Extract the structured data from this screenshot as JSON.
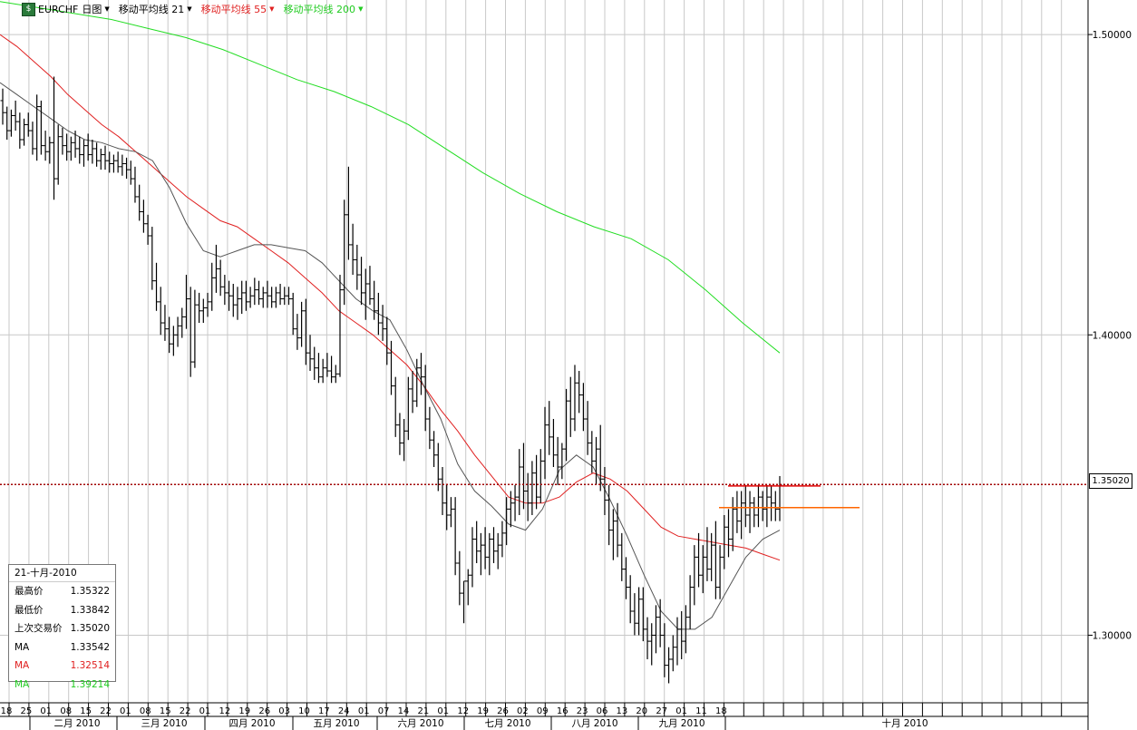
{
  "toolbar": {
    "symbol": "EURCHF",
    "period": "日图",
    "ma1_label": "移动平均线 21",
    "ma2_label": "移动平均线 55",
    "ma3_label": "移动平均线 200"
  },
  "colors": {
    "ma21": "#555555",
    "ma55": "#e02020",
    "ma200": "#22dd22",
    "price_line": "#a00000",
    "resistance": "#e00000",
    "support": "#ff6600"
  },
  "info_box": {
    "date": "21-十月-2010",
    "rows": [
      {
        "label": "最高价",
        "value": "1.35322"
      },
      {
        "label": "最低价",
        "value": "1.33842"
      },
      {
        "label": "上次交易价",
        "value": "1.35020"
      },
      {
        "label": "MA",
        "value": "1.33542"
      },
      {
        "label": "MA",
        "value": "1.32514"
      },
      {
        "label": "MA",
        "value": "1.39214"
      }
    ]
  },
  "last_price": "1.35020",
  "chart_data": {
    "type": "line",
    "title": "EURCHF 日图",
    "ylim": [
      1.2775,
      1.5115
    ],
    "y_ticks": [
      "1.50000",
      "1.40000",
      "1.30000"
    ],
    "grid": true,
    "x_day_ticks": [
      "18",
      "25",
      "01",
      "08",
      "15",
      "22",
      "01",
      "08",
      "15",
      "22",
      "01",
      "12",
      "19",
      "26",
      "03",
      "10",
      "17",
      "24",
      "01",
      "07",
      "14",
      "21",
      "01",
      "12",
      "19",
      "26",
      "02",
      "09",
      "16",
      "23",
      "06",
      "13",
      "20",
      "27",
      "01",
      "11",
      "18"
    ],
    "x_month_labels": [
      "二月 2010",
      "三月 2010",
      "四月 2010",
      "五月 2010",
      "六月 2010",
      "七月 2010",
      "八月 2010",
      "九月 2010",
      "十月 2010"
    ],
    "series": [
      {
        "name": "移动平均线 21",
        "values": [
          1.484,
          1.48,
          1.476,
          1.472,
          1.468,
          1.465,
          1.464,
          1.462,
          1.461,
          1.458,
          1.449,
          1.437,
          1.428,
          1.426,
          1.428,
          1.43,
          1.43,
          1.429,
          1.428,
          1.424,
          1.418,
          1.412,
          1.408,
          1.405,
          1.395,
          1.383,
          1.372,
          1.357,
          1.348,
          1.343,
          1.337,
          1.335,
          1.342,
          1.355,
          1.36,
          1.356,
          1.345,
          1.333,
          1.32,
          1.308,
          1.302,
          1.302,
          1.306,
          1.316,
          1.326,
          1.332,
          1.335
        ]
      },
      {
        "name": "移动平均线 55",
        "values": [
          1.5,
          1.496,
          1.491,
          1.486,
          1.48,
          1.475,
          1.47,
          1.466,
          1.461,
          1.456,
          1.451,
          1.446,
          1.442,
          1.438,
          1.436,
          1.432,
          1.428,
          1.424,
          1.419,
          1.414,
          1.408,
          1.404,
          1.4,
          1.395,
          1.39,
          1.383,
          1.375,
          1.368,
          1.36,
          1.353,
          1.346,
          1.344,
          1.344,
          1.346,
          1.351,
          1.354,
          1.352,
          1.348,
          1.342,
          1.336,
          1.333,
          1.332,
          1.331,
          1.33,
          1.329,
          1.327,
          1.325
        ]
      },
      {
        "name": "移动平均线 200",
        "values": [
          1.511,
          1.509,
          1.507,
          1.505,
          1.502,
          1.499,
          1.495,
          1.49,
          1.485,
          1.481,
          1.476,
          1.47,
          1.462,
          1.454,
          1.447,
          1.441,
          1.436,
          1.432,
          1.425,
          1.415,
          1.404,
          1.394
        ]
      }
    ],
    "ohlc_daily": [
      [
        1.478,
        1.482,
        1.47,
        1.474
      ],
      [
        1.474,
        1.476,
        1.465,
        1.468
      ],
      [
        1.468,
        1.475,
        1.466,
        1.473
      ],
      [
        1.473,
        1.478,
        1.468,
        1.471
      ],
      [
        1.471,
        1.474,
        1.462,
        1.465
      ],
      [
        1.465,
        1.472,
        1.463,
        1.47
      ],
      [
        1.47,
        1.474,
        1.466,
        1.468
      ],
      [
        1.468,
        1.471,
        1.46,
        1.462
      ],
      [
        1.462,
        1.48,
        1.458,
        1.476
      ],
      [
        1.476,
        1.478,
        1.46,
        1.463
      ],
      [
        1.463,
        1.468,
        1.458,
        1.461
      ],
      [
        1.461,
        1.466,
        1.457,
        1.464
      ],
      [
        1.464,
        1.486,
        1.445,
        1.452
      ],
      [
        1.452,
        1.47,
        1.45,
        1.466
      ],
      [
        1.466,
        1.469,
        1.46,
        1.463
      ],
      [
        1.463,
        1.467,
        1.458,
        1.461
      ],
      [
        1.461,
        1.466,
        1.458,
        1.464
      ],
      [
        1.464,
        1.468,
        1.459,
        1.462
      ],
      [
        1.462,
        1.466,
        1.457,
        1.46
      ],
      [
        1.46,
        1.465,
        1.456,
        1.463
      ],
      [
        1.463,
        1.467,
        1.458,
        1.46
      ],
      [
        1.46,
        1.465,
        1.457,
        1.462
      ],
      [
        1.462,
        1.464,
        1.456,
        1.458
      ],
      [
        1.458,
        1.462,
        1.455,
        1.46
      ],
      [
        1.46,
        1.463,
        1.455,
        1.458
      ],
      [
        1.458,
        1.461,
        1.454,
        1.457
      ],
      [
        1.457,
        1.46,
        1.454,
        1.458
      ],
      [
        1.458,
        1.461,
        1.454,
        1.456
      ],
      [
        1.456,
        1.46,
        1.453,
        1.457
      ],
      [
        1.457,
        1.459,
        1.452,
        1.455
      ],
      [
        1.455,
        1.458,
        1.45,
        1.452
      ],
      [
        1.452,
        1.456,
        1.444,
        1.446
      ],
      [
        1.446,
        1.45,
        1.438,
        1.441
      ],
      [
        1.441,
        1.445,
        1.434,
        1.437
      ],
      [
        1.437,
        1.44,
        1.43,
        1.433
      ],
      [
        1.433,
        1.436,
        1.415,
        1.418
      ],
      [
        1.418,
        1.424,
        1.408,
        1.411
      ],
      [
        1.411,
        1.416,
        1.4,
        1.404
      ],
      [
        1.404,
        1.41,
        1.398,
        1.402
      ],
      [
        1.402,
        1.406,
        1.394,
        1.397
      ],
      [
        1.397,
        1.403,
        1.393,
        1.4
      ],
      [
        1.4,
        1.406,
        1.396,
        1.403
      ],
      [
        1.403,
        1.409,
        1.399,
        1.406
      ],
      [
        1.406,
        1.42,
        1.402,
        1.412
      ],
      [
        1.412,
        1.416,
        1.386,
        1.391
      ],
      [
        1.391,
        1.415,
        1.389,
        1.41
      ],
      [
        1.41,
        1.414,
        1.404,
        1.408
      ],
      [
        1.408,
        1.412,
        1.404,
        1.409
      ],
      [
        1.409,
        1.414,
        1.406,
        1.411
      ],
      [
        1.411,
        1.424,
        1.408,
        1.419
      ],
      [
        1.419,
        1.43,
        1.414,
        1.422
      ],
      [
        1.422,
        1.425,
        1.413,
        1.416
      ],
      [
        1.416,
        1.42,
        1.41,
        1.414
      ],
      [
        1.414,
        1.418,
        1.408,
        1.413
      ],
      [
        1.413,
        1.417,
        1.406,
        1.41
      ],
      [
        1.41,
        1.416,
        1.405,
        1.412
      ],
      [
        1.412,
        1.418,
        1.407,
        1.414
      ],
      [
        1.414,
        1.418,
        1.408,
        1.411
      ],
      [
        1.411,
        1.416,
        1.409,
        1.413
      ],
      [
        1.413,
        1.419,
        1.41,
        1.415
      ],
      [
        1.415,
        1.418,
        1.41,
        1.412
      ],
      [
        1.412,
        1.416,
        1.409,
        1.414
      ],
      [
        1.414,
        1.418,
        1.409,
        1.413
      ],
      [
        1.413,
        1.416,
        1.409,
        1.411
      ],
      [
        1.411,
        1.416,
        1.409,
        1.414
      ],
      [
        1.414,
        1.417,
        1.41,
        1.412
      ],
      [
        1.412,
        1.416,
        1.41,
        1.413
      ],
      [
        1.413,
        1.416,
        1.41,
        1.412
      ],
      [
        1.412,
        1.414,
        1.4,
        1.402
      ],
      [
        1.402,
        1.407,
        1.395,
        1.399
      ],
      [
        1.399,
        1.411,
        1.396,
        1.408
      ],
      [
        1.408,
        1.412,
        1.39,
        1.394
      ],
      [
        1.394,
        1.4,
        1.388,
        1.392
      ],
      [
        1.392,
        1.396,
        1.385,
        1.389
      ],
      [
        1.389,
        1.394,
        1.384,
        1.386
      ],
      [
        1.386,
        1.392,
        1.384,
        1.389
      ],
      [
        1.389,
        1.394,
        1.386,
        1.388
      ],
      [
        1.388,
        1.393,
        1.384,
        1.386
      ],
      [
        1.386,
        1.39,
        1.384,
        1.387
      ],
      [
        1.387,
        1.42,
        1.386,
        1.415
      ],
      [
        1.415,
        1.445,
        1.41,
        1.44
      ],
      [
        1.44,
        1.456,
        1.425,
        1.43
      ],
      [
        1.43,
        1.437,
        1.42,
        1.425
      ],
      [
        1.425,
        1.43,
        1.415,
        1.42
      ],
      [
        1.42,
        1.426,
        1.41,
        1.414
      ],
      [
        1.414,
        1.422,
        1.405,
        1.417
      ],
      [
        1.417,
        1.423,
        1.41,
        1.412
      ],
      [
        1.412,
        1.418,
        1.405,
        1.408
      ],
      [
        1.408,
        1.414,
        1.4,
        1.404
      ],
      [
        1.404,
        1.41,
        1.398,
        1.402
      ],
      [
        1.402,
        1.406,
        1.39,
        1.394
      ],
      [
        1.394,
        1.398,
        1.38,
        1.383
      ],
      [
        1.383,
        1.386,
        1.366,
        1.37
      ],
      [
        1.37,
        1.374,
        1.36,
        1.364
      ],
      [
        1.364,
        1.372,
        1.358,
        1.368
      ],
      [
        1.368,
        1.386,
        1.365,
        1.382
      ],
      [
        1.382,
        1.388,
        1.374,
        1.378
      ],
      [
        1.378,
        1.392,
        1.376,
        1.389
      ],
      [
        1.389,
        1.394,
        1.38,
        1.386
      ],
      [
        1.386,
        1.39,
        1.368,
        1.372
      ],
      [
        1.372,
        1.376,
        1.362,
        1.365
      ],
      [
        1.365,
        1.368,
        1.356,
        1.36
      ],
      [
        1.36,
        1.364,
        1.348,
        1.352
      ],
      [
        1.352,
        1.356,
        1.34,
        1.344
      ],
      [
        1.344,
        1.35,
        1.335,
        1.34
      ],
      [
        1.34,
        1.346,
        1.336,
        1.342
      ],
      [
        1.342,
        1.346,
        1.32,
        1.324
      ],
      [
        1.324,
        1.328,
        1.31,
        1.314
      ],
      [
        1.314,
        1.318,
        1.304,
        1.318
      ],
      [
        1.318,
        1.322,
        1.31,
        1.32
      ],
      [
        1.32,
        1.336,
        1.316,
        1.332
      ],
      [
        1.332,
        1.338,
        1.324,
        1.328
      ],
      [
        1.328,
        1.334,
        1.32,
        1.33
      ],
      [
        1.33,
        1.336,
        1.322,
        1.326
      ],
      [
        1.326,
        1.334,
        1.32,
        1.332
      ],
      [
        1.332,
        1.336,
        1.324,
        1.328
      ],
      [
        1.328,
        1.334,
        1.322,
        1.33
      ],
      [
        1.33,
        1.338,
        1.326,
        1.334
      ],
      [
        1.334,
        1.346,
        1.33,
        1.342
      ],
      [
        1.342,
        1.348,
        1.336,
        1.344
      ],
      [
        1.344,
        1.35,
        1.338,
        1.346
      ],
      [
        1.346,
        1.362,
        1.34,
        1.356
      ],
      [
        1.356,
        1.364,
        1.342,
        1.348
      ],
      [
        1.348,
        1.354,
        1.338,
        1.344
      ],
      [
        1.344,
        1.358,
        1.34,
        1.354
      ],
      [
        1.354,
        1.36,
        1.342,
        1.346
      ],
      [
        1.346,
        1.362,
        1.344,
        1.358
      ],
      [
        1.358,
        1.376,
        1.352,
        1.37
      ],
      [
        1.37,
        1.378,
        1.36,
        1.366
      ],
      [
        1.366,
        1.372,
        1.356,
        1.36
      ],
      [
        1.36,
        1.366,
        1.35,
        1.356
      ],
      [
        1.356,
        1.364,
        1.352,
        1.362
      ],
      [
        1.362,
        1.382,
        1.358,
        1.378
      ],
      [
        1.378,
        1.386,
        1.366,
        1.372
      ],
      [
        1.372,
        1.39,
        1.368,
        1.384
      ],
      [
        1.384,
        1.388,
        1.374,
        1.38
      ],
      [
        1.38,
        1.384,
        1.368,
        1.372
      ],
      [
        1.372,
        1.378,
        1.36,
        1.364
      ],
      [
        1.364,
        1.368,
        1.354,
        1.358
      ],
      [
        1.358,
        1.366,
        1.35,
        1.362
      ],
      [
        1.362,
        1.37,
        1.348,
        1.352
      ],
      [
        1.352,
        1.356,
        1.34,
        1.345
      ],
      [
        1.345,
        1.35,
        1.33,
        1.335
      ],
      [
        1.335,
        1.342,
        1.325,
        1.338
      ],
      [
        1.338,
        1.344,
        1.326,
        1.33
      ],
      [
        1.33,
        1.334,
        1.318,
        1.322
      ],
      [
        1.322,
        1.326,
        1.312,
        1.316
      ],
      [
        1.316,
        1.32,
        1.304,
        1.308
      ],
      [
        1.308,
        1.314,
        1.3,
        1.304
      ],
      [
        1.304,
        1.316,
        1.3,
        1.312
      ],
      [
        1.312,
        1.316,
        1.298,
        1.302
      ],
      [
        1.302,
        1.306,
        1.292,
        1.298
      ],
      [
        1.298,
        1.304,
        1.29,
        1.3
      ],
      [
        1.3,
        1.31,
        1.294,
        1.306
      ],
      [
        1.306,
        1.312,
        1.296,
        1.3
      ],
      [
        1.3,
        1.304,
        1.286,
        1.29
      ],
      [
        1.29,
        1.296,
        1.284,
        1.292
      ],
      [
        1.292,
        1.3,
        1.288,
        1.296
      ],
      [
        1.296,
        1.306,
        1.29,
        1.302
      ],
      [
        1.302,
        1.308,
        1.292,
        1.298
      ],
      [
        1.298,
        1.31,
        1.294,
        1.306
      ],
      [
        1.306,
        1.32,
        1.302,
        1.316
      ],
      [
        1.316,
        1.33,
        1.31,
        1.326
      ],
      [
        1.326,
        1.334,
        1.316,
        1.32
      ],
      [
        1.32,
        1.33,
        1.314,
        1.326
      ],
      [
        1.326,
        1.336,
        1.318,
        1.322
      ],
      [
        1.322,
        1.334,
        1.318,
        1.33
      ],
      [
        1.33,
        1.338,
        1.312,
        1.316
      ],
      [
        1.316,
        1.33,
        1.312,
        1.326
      ],
      [
        1.326,
        1.34,
        1.322,
        1.336
      ],
      [
        1.336,
        1.342,
        1.326,
        1.332
      ],
      [
        1.332,
        1.346,
        1.328,
        1.342
      ],
      [
        1.342,
        1.348,
        1.334,
        1.338
      ],
      [
        1.338,
        1.348,
        1.332,
        1.344
      ],
      [
        1.344,
        1.35,
        1.336,
        1.34
      ],
      [
        1.34,
        1.348,
        1.334,
        1.344
      ],
      [
        1.344,
        1.346,
        1.336,
        1.34
      ],
      [
        1.34,
        1.35,
        1.336,
        1.346
      ],
      [
        1.346,
        1.348,
        1.338,
        1.342
      ],
      [
        1.342,
        1.35,
        1.336,
        1.346
      ],
      [
        1.346,
        1.35,
        1.338,
        1.344
      ],
      [
        1.344,
        1.348,
        1.338,
        1.342
      ],
      [
        1.342,
        1.353,
        1.338,
        1.35
      ]
    ],
    "reference_lines": [
      {
        "name": "last-price",
        "value": 1.3502
      },
      {
        "name": "resistance",
        "value": 1.3497
      },
      {
        "name": "support",
        "value": 1.3425
      }
    ]
  }
}
